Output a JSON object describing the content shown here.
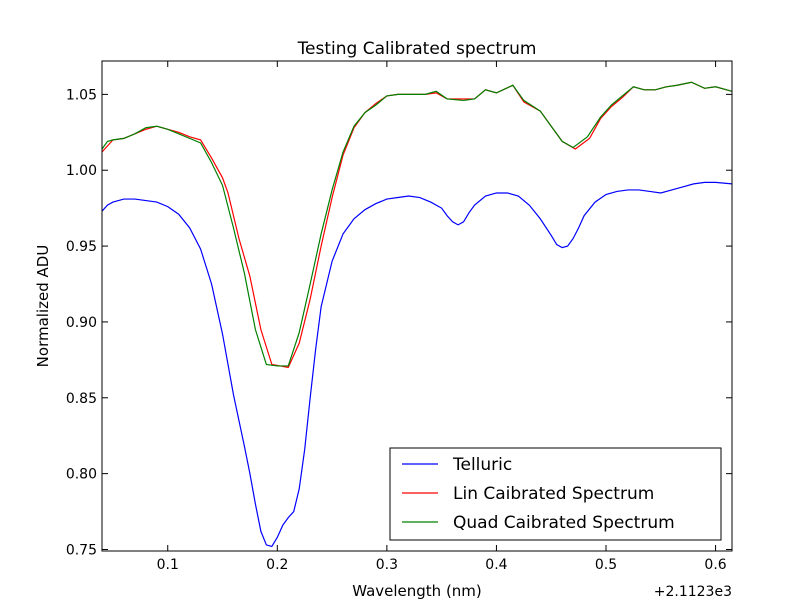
{
  "chart_data": {
    "type": "line",
    "title": "Testing Calibrated spectrum",
    "xlabel": "Wavelength (nm)",
    "ylabel": "Normalized ADU",
    "x_offset_label": "+2.1123e3",
    "xlim": [
      0.04,
      0.615
    ],
    "ylim": [
      0.749,
      1.072
    ],
    "xticks": [
      0.1,
      0.2,
      0.3,
      0.4,
      0.5,
      0.6
    ],
    "xtick_labels": [
      "0.1",
      "0.2",
      "0.3",
      "0.4",
      "0.5",
      "0.6"
    ],
    "yticks": [
      0.75,
      0.8,
      0.85,
      0.9,
      0.95,
      1.0,
      1.05
    ],
    "ytick_labels": [
      "0.75",
      "0.80",
      "0.85",
      "0.90",
      "0.95",
      "1.00",
      "1.05"
    ],
    "grid": false,
    "legend_position": "lower-right",
    "series": [
      {
        "name": "Telluric",
        "color": "#0000ff",
        "x": [
          0.04,
          0.045,
          0.05,
          0.055,
          0.06,
          0.07,
          0.08,
          0.09,
          0.1,
          0.11,
          0.12,
          0.13,
          0.14,
          0.15,
          0.16,
          0.17,
          0.175,
          0.18,
          0.185,
          0.19,
          0.195,
          0.2,
          0.205,
          0.21,
          0.215,
          0.22,
          0.225,
          0.23,
          0.235,
          0.24,
          0.25,
          0.26,
          0.27,
          0.28,
          0.29,
          0.3,
          0.31,
          0.32,
          0.33,
          0.34,
          0.35,
          0.355,
          0.36,
          0.365,
          0.37,
          0.375,
          0.38,
          0.39,
          0.4,
          0.41,
          0.42,
          0.43,
          0.44,
          0.45,
          0.455,
          0.46,
          0.465,
          0.47,
          0.475,
          0.48,
          0.49,
          0.5,
          0.51,
          0.52,
          0.53,
          0.54,
          0.55,
          0.56,
          0.57,
          0.58,
          0.59,
          0.6,
          0.615
        ],
        "y": [
          0.973,
          0.977,
          0.979,
          0.98,
          0.981,
          0.981,
          0.98,
          0.979,
          0.976,
          0.971,
          0.962,
          0.948,
          0.925,
          0.892,
          0.852,
          0.818,
          0.8,
          0.78,
          0.762,
          0.753,
          0.752,
          0.758,
          0.766,
          0.771,
          0.775,
          0.79,
          0.816,
          0.85,
          0.882,
          0.91,
          0.94,
          0.958,
          0.968,
          0.974,
          0.978,
          0.981,
          0.982,
          0.983,
          0.982,
          0.979,
          0.975,
          0.97,
          0.966,
          0.964,
          0.966,
          0.972,
          0.977,
          0.983,
          0.985,
          0.985,
          0.983,
          0.977,
          0.968,
          0.957,
          0.951,
          0.949,
          0.95,
          0.955,
          0.962,
          0.97,
          0.979,
          0.984,
          0.986,
          0.987,
          0.987,
          0.986,
          0.985,
          0.987,
          0.989,
          0.991,
          0.992,
          0.992,
          0.991
        ]
      },
      {
        "name": "Lin Caibrated Spectrum",
        "color": "#ff0000",
        "x": [
          0.04,
          0.05,
          0.06,
          0.07,
          0.08,
          0.09,
          0.1,
          0.11,
          0.12,
          0.13,
          0.14,
          0.15,
          0.155,
          0.165,
          0.175,
          0.185,
          0.195,
          0.21,
          0.22,
          0.23,
          0.24,
          0.25,
          0.26,
          0.27,
          0.28,
          0.29,
          0.3,
          0.31,
          0.32,
          0.335,
          0.345,
          0.355,
          0.37,
          0.38,
          0.39,
          0.4,
          0.415,
          0.425,
          0.44,
          0.45,
          0.46,
          0.472,
          0.485,
          0.495,
          0.505,
          0.515,
          0.525,
          0.535,
          0.545,
          0.555,
          0.565,
          0.578,
          0.59,
          0.6,
          0.615
        ],
        "y": [
          1.012,
          1.02,
          1.021,
          1.024,
          1.027,
          1.029,
          1.027,
          1.025,
          1.022,
          1.02,
          1.008,
          0.995,
          0.985,
          0.955,
          0.93,
          0.895,
          0.872,
          0.87,
          0.886,
          0.915,
          0.95,
          0.982,
          1.01,
          1.028,
          1.038,
          1.044,
          1.049,
          1.05,
          1.05,
          1.05,
          1.051,
          1.047,
          1.047,
          1.047,
          1.053,
          1.051,
          1.056,
          1.045,
          1.039,
          1.029,
          1.019,
          1.014,
          1.021,
          1.034,
          1.042,
          1.048,
          1.055,
          1.053,
          1.053,
          1.055,
          1.056,
          1.058,
          1.054,
          1.055,
          1.052
        ]
      },
      {
        "name": "Quad Caibrated Spectrum",
        "color": "#008000",
        "x": [
          0.04,
          0.045,
          0.05,
          0.06,
          0.07,
          0.08,
          0.09,
          0.1,
          0.11,
          0.12,
          0.13,
          0.14,
          0.15,
          0.16,
          0.17,
          0.18,
          0.19,
          0.2,
          0.21,
          0.22,
          0.23,
          0.24,
          0.25,
          0.26,
          0.27,
          0.28,
          0.29,
          0.3,
          0.31,
          0.32,
          0.335,
          0.345,
          0.355,
          0.37,
          0.38,
          0.39,
          0.4,
          0.415,
          0.425,
          0.44,
          0.45,
          0.46,
          0.47,
          0.483,
          0.495,
          0.505,
          0.515,
          0.525,
          0.535,
          0.545,
          0.555,
          0.565,
          0.578,
          0.59,
          0.6,
          0.615
        ],
        "y": [
          1.014,
          1.019,
          1.02,
          1.021,
          1.024,
          1.028,
          1.029,
          1.027,
          1.024,
          1.021,
          1.018,
          1.005,
          0.99,
          0.962,
          0.932,
          0.895,
          0.872,
          0.871,
          0.871,
          0.893,
          0.925,
          0.958,
          0.987,
          1.012,
          1.029,
          1.038,
          1.043,
          1.049,
          1.05,
          1.05,
          1.05,
          1.052,
          1.047,
          1.046,
          1.047,
          1.053,
          1.051,
          1.056,
          1.046,
          1.039,
          1.029,
          1.019,
          1.015,
          1.022,
          1.035,
          1.043,
          1.049,
          1.055,
          1.053,
          1.053,
          1.055,
          1.056,
          1.058,
          1.054,
          1.055,
          1.052
        ]
      }
    ]
  }
}
